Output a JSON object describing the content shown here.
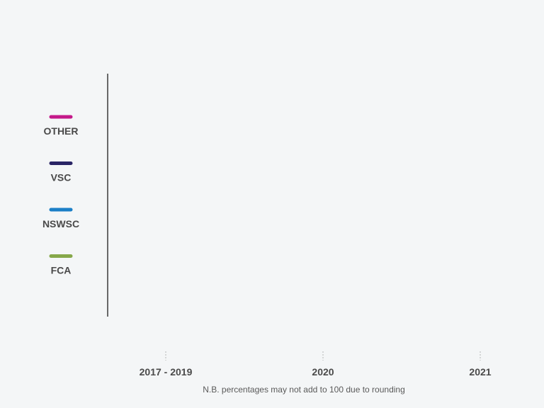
{
  "chart_data": {
    "type": "bar",
    "title": "",
    "xlabel": "",
    "ylabel": "",
    "categories": [
      "2017 - 2019",
      "2020",
      "2021"
    ],
    "series": [
      {
        "name": "OTHER",
        "color": "#c4198a",
        "values": [
          null,
          null,
          null
        ]
      },
      {
        "name": "VSC",
        "color": "#2a2566",
        "values": [
          null,
          null,
          null
        ]
      },
      {
        "name": "NSWSC",
        "color": "#1b7fc7",
        "values": [
          null,
          null,
          null
        ]
      },
      {
        "name": "FCA",
        "color": "#86a84a",
        "values": [
          null,
          null,
          null
        ]
      }
    ],
    "legend_position": "left",
    "grid": false
  },
  "footnote": "N.B. percentages may not add to 100 due to rounding"
}
